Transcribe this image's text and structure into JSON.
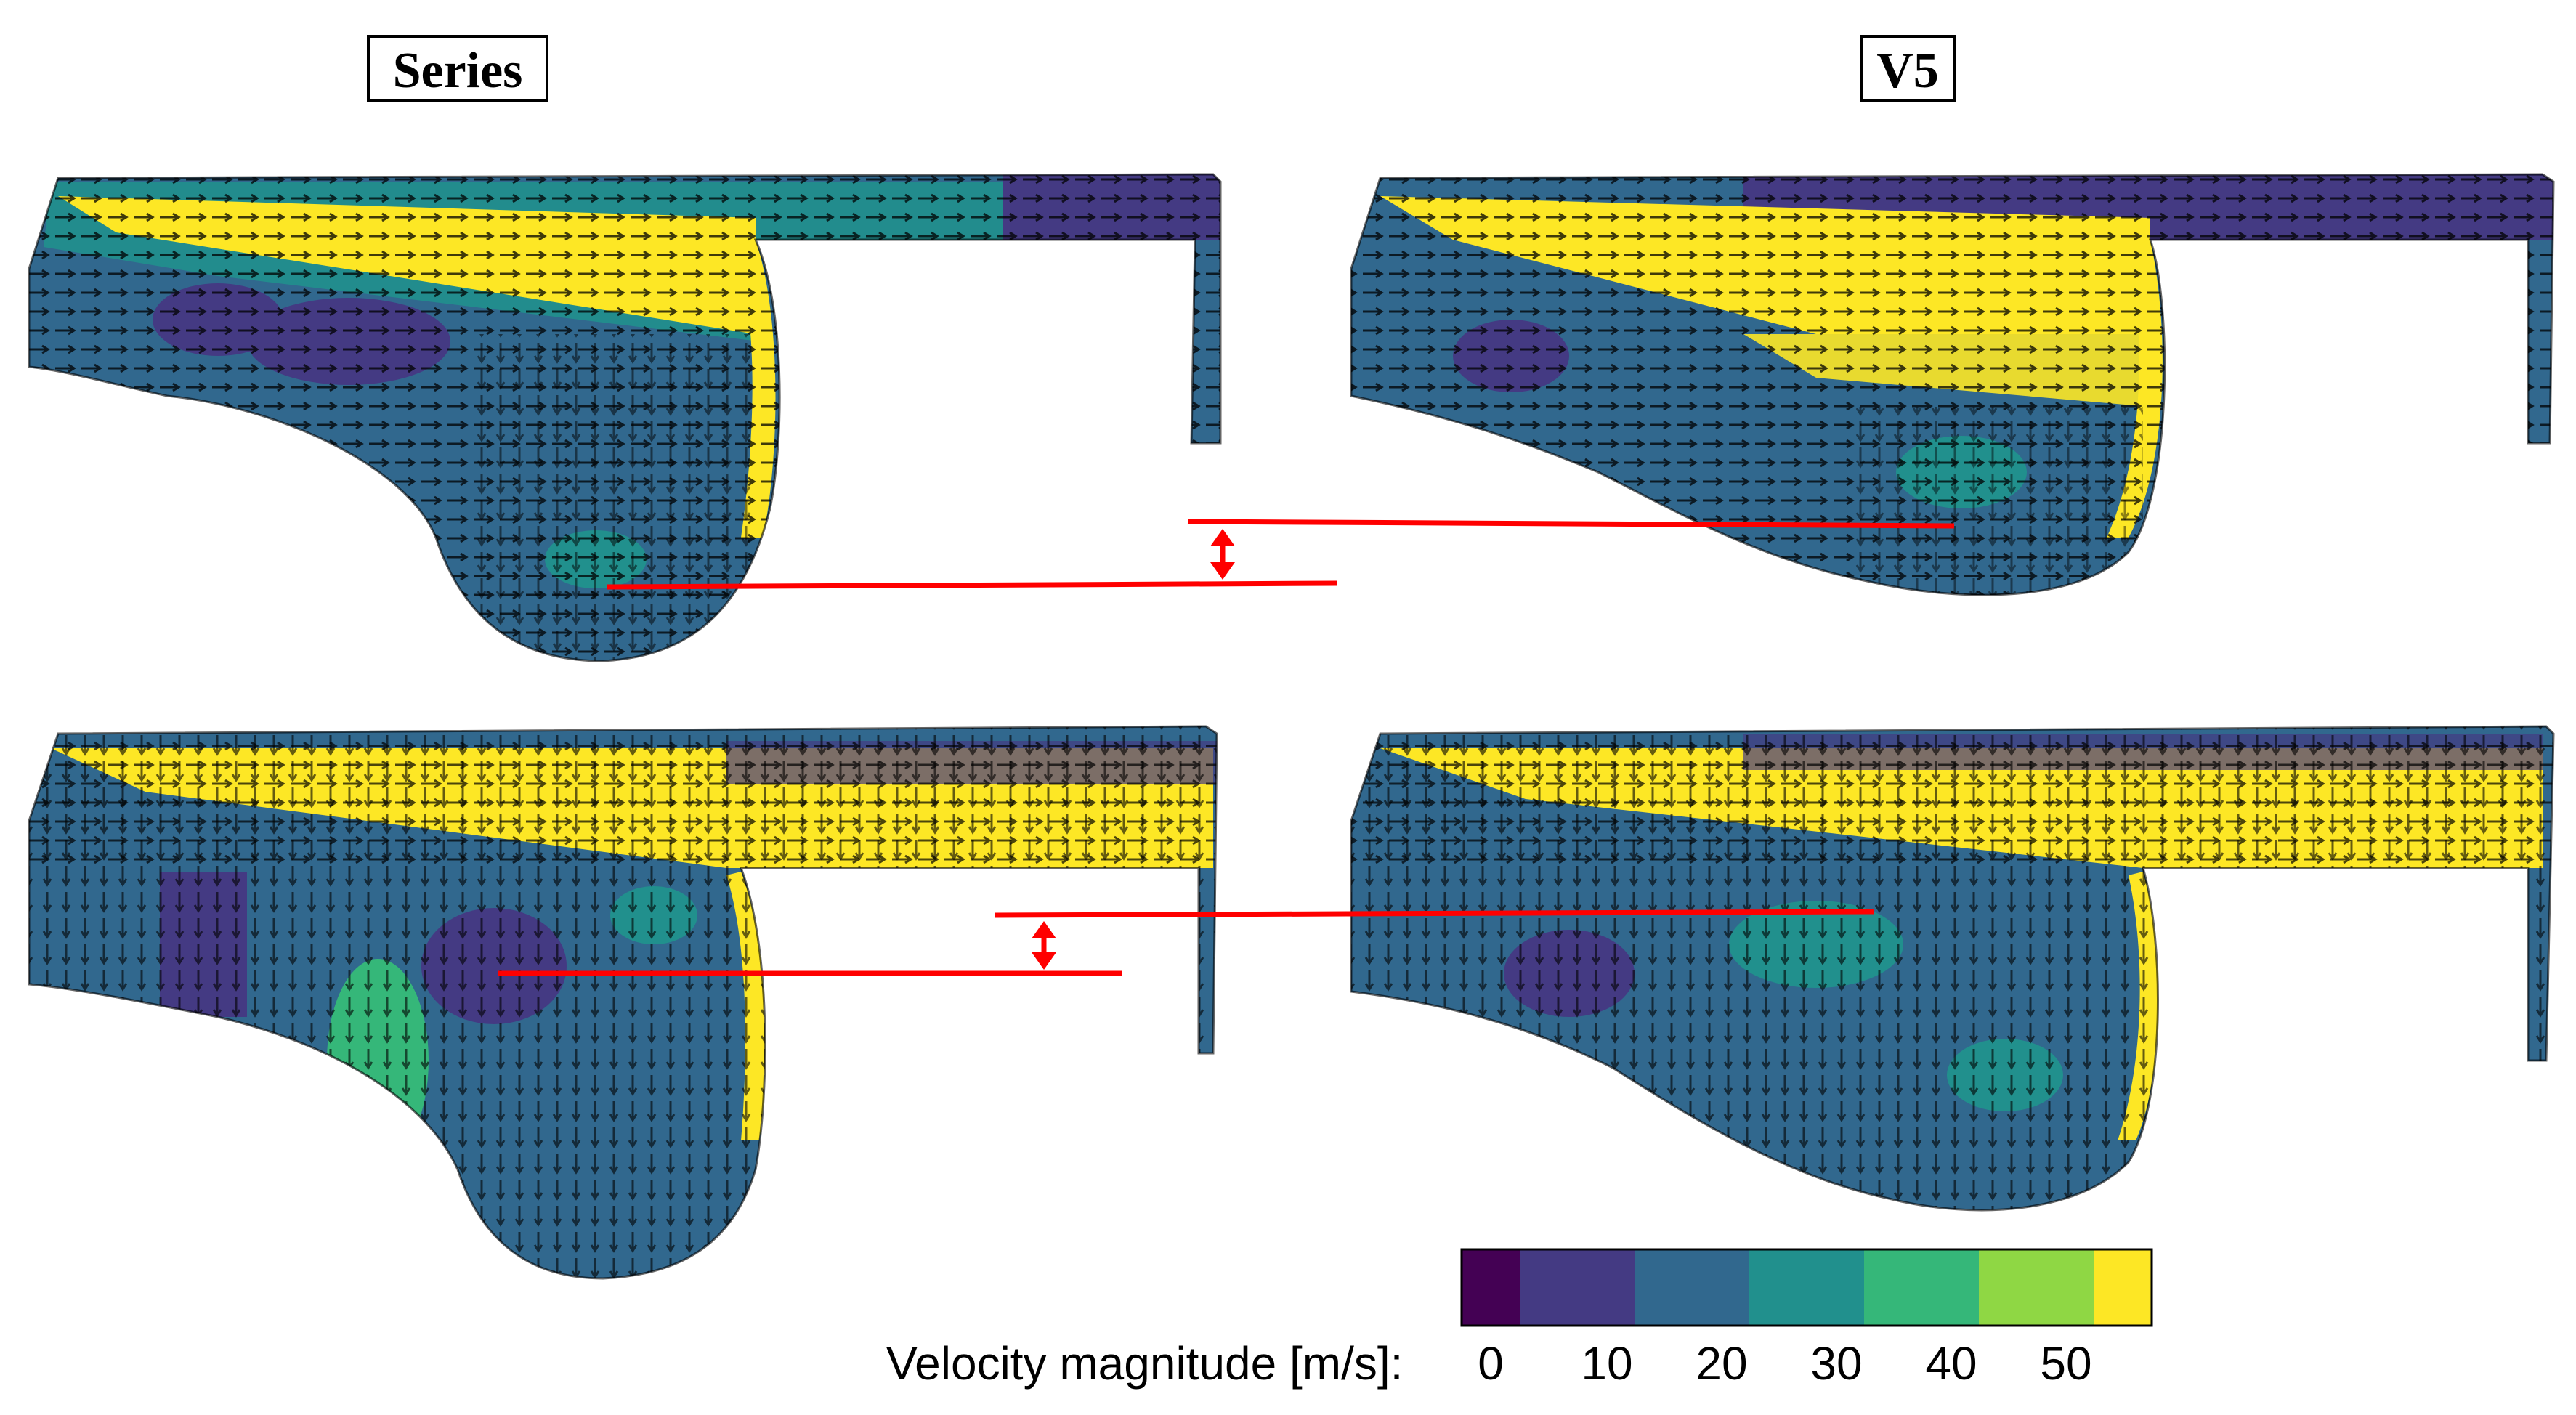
{
  "labels": {
    "left": "Series",
    "right": "V5"
  },
  "colorbar": {
    "title": "Velocity magnitude [m/s]:",
    "ticks": [
      "0",
      "10",
      "20",
      "30",
      "40",
      "50"
    ],
    "colors": [
      "#440154",
      "#443a83",
      "#31688e",
      "#21908d",
      "#35b779",
      "#8fd744",
      "#fde725"
    ]
  },
  "colors": {
    "dark_blue": "#31688e",
    "indigo": "#443a83",
    "teal": "#21908d",
    "green": "#35b779",
    "yellow": "#fde725",
    "arrow": "#000000",
    "marker": "#ff0000"
  },
  "panels": [
    {
      "name": "top-left",
      "shape": "series-top"
    },
    {
      "name": "top-right",
      "shape": "v5-top"
    },
    {
      "name": "bottom-left",
      "shape": "series-bottom"
    },
    {
      "name": "bottom-right",
      "shape": "v5-bottom"
    }
  ]
}
